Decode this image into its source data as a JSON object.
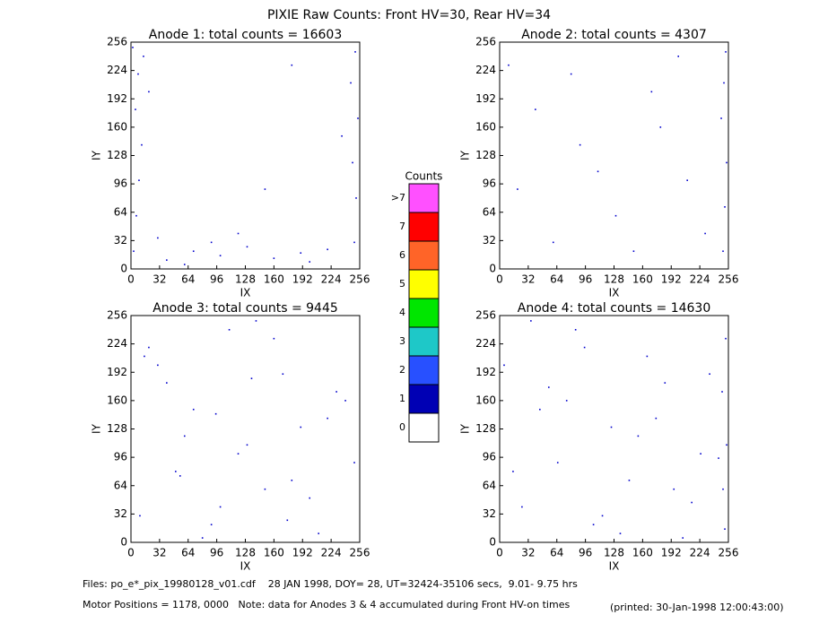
{
  "title": "PIXIE Raw Counts:  Front HV=30, Rear HV=34",
  "chart_data": [
    {
      "type": "scatter",
      "title": "Anode 1: total counts = 16603",
      "x_label": "IX",
      "y_label": "IY",
      "color": "#0000cc",
      "xlim": [
        0,
        256
      ],
      "ylim": [
        0,
        256
      ],
      "xticks": [
        0,
        32,
        64,
        96,
        128,
        160,
        192,
        224,
        256
      ],
      "yticks": [
        0,
        32,
        64,
        96,
        128,
        160,
        192,
        224,
        256
      ],
      "x": [
        3,
        6,
        9,
        12,
        5,
        8,
        14,
        2,
        250,
        252,
        248,
        254,
        246,
        251,
        40,
        70,
        100,
        130,
        160,
        190,
        220,
        30,
        60,
        90,
        200,
        120,
        20,
        236,
        180,
        150
      ],
      "y": [
        20,
        60,
        100,
        140,
        180,
        220,
        240,
        250,
        30,
        80,
        120,
        170,
        210,
        245,
        10,
        20,
        15,
        25,
        12,
        18,
        22,
        35,
        5,
        30,
        8,
        40,
        200,
        150,
        230,
        90
      ]
    },
    {
      "type": "scatter",
      "title": "Anode 2: total counts = 4307",
      "x_label": "IX",
      "y_label": "IY",
      "color": "#0000cc",
      "xlim": [
        0,
        256
      ],
      "ylim": [
        0,
        256
      ],
      "xticks": [
        0,
        32,
        64,
        96,
        128,
        160,
        192,
        224,
        256
      ],
      "yticks": [
        0,
        32,
        64,
        96,
        128,
        160,
        192,
        224,
        256
      ],
      "x": [
        250,
        252,
        254,
        248,
        251,
        253,
        10,
        40,
        90,
        130,
        170,
        210,
        60,
        150,
        200,
        20,
        110,
        230,
        80,
        180
      ],
      "y": [
        20,
        70,
        120,
        170,
        210,
        245,
        230,
        180,
        140,
        60,
        200,
        100,
        30,
        20,
        240,
        90,
        110,
        40,
        220,
        160
      ]
    },
    {
      "type": "scatter",
      "title": "Anode 3: total counts = 9445",
      "x_label": "IX",
      "y_label": "IY",
      "color": "#0000cc",
      "xlim": [
        0,
        256
      ],
      "ylim": [
        0,
        256
      ],
      "xticks": [
        0,
        32,
        64,
        96,
        128,
        160,
        192,
        224,
        256
      ],
      "yticks": [
        0,
        32,
        64,
        96,
        128,
        160,
        192,
        224,
        256
      ],
      "x": [
        10,
        30,
        50,
        70,
        90,
        110,
        130,
        150,
        170,
        190,
        210,
        230,
        250,
        20,
        60,
        100,
        140,
        180,
        220,
        40,
        80,
        120,
        160,
        200,
        240,
        15,
        55,
        95,
        135,
        175
      ],
      "y": [
        30,
        200,
        80,
        150,
        20,
        240,
        110,
        60,
        190,
        130,
        10,
        170,
        90,
        220,
        120,
        40,
        250,
        70,
        140,
        180,
        5,
        100,
        230,
        50,
        160,
        210,
        75,
        145,
        185,
        25
      ]
    },
    {
      "type": "scatter",
      "title": "Anode 4: total counts = 14630",
      "x_label": "IX",
      "y_label": "IY",
      "color": "#0000cc",
      "xlim": [
        0,
        256
      ],
      "ylim": [
        0,
        256
      ],
      "xticks": [
        0,
        32,
        64,
        96,
        128,
        160,
        192,
        224,
        256
      ],
      "yticks": [
        0,
        32,
        64,
        96,
        128,
        160,
        192,
        224,
        256
      ],
      "x": [
        252,
        250,
        254,
        249,
        253,
        5,
        25,
        45,
        65,
        85,
        105,
        125,
        145,
        165,
        185,
        205,
        225,
        35,
        75,
        115,
        155,
        195,
        235,
        15,
        95,
        175,
        215,
        55,
        135,
        245
      ],
      "y": [
        15,
        60,
        110,
        170,
        230,
        200,
        40,
        150,
        90,
        240,
        20,
        130,
        70,
        210,
        180,
        5,
        100,
        250,
        160,
        30,
        120,
        60,
        190,
        80,
        220,
        140,
        45,
        175,
        10,
        95
      ]
    },
    {
      "type": "colorbar",
      "title": "Counts",
      "categories": [
        "0",
        "1",
        "2",
        "3",
        "4",
        "5",
        "6",
        "7",
        ">7"
      ],
      "colors": [
        "#ffffff",
        "#0000b4",
        "#2850ff",
        "#1ec8c8",
        "#00e600",
        "#ffff00",
        "#ff6428",
        "#ff0000",
        "#ff50ff"
      ]
    }
  ],
  "footer": {
    "files": "Files: po_e*_pix_19980128_v01.cdf    28 JAN 1998, DOY= 28, UT=32424-35106 secs,  9.01- 9.75 hrs",
    "motor": "Motor Positions = 1178, 0000   Note: data for Anodes 3 & 4 accumulated during Front HV-on times",
    "printed": "(printed: 30-Jan-1998 12:00:43:00)"
  }
}
